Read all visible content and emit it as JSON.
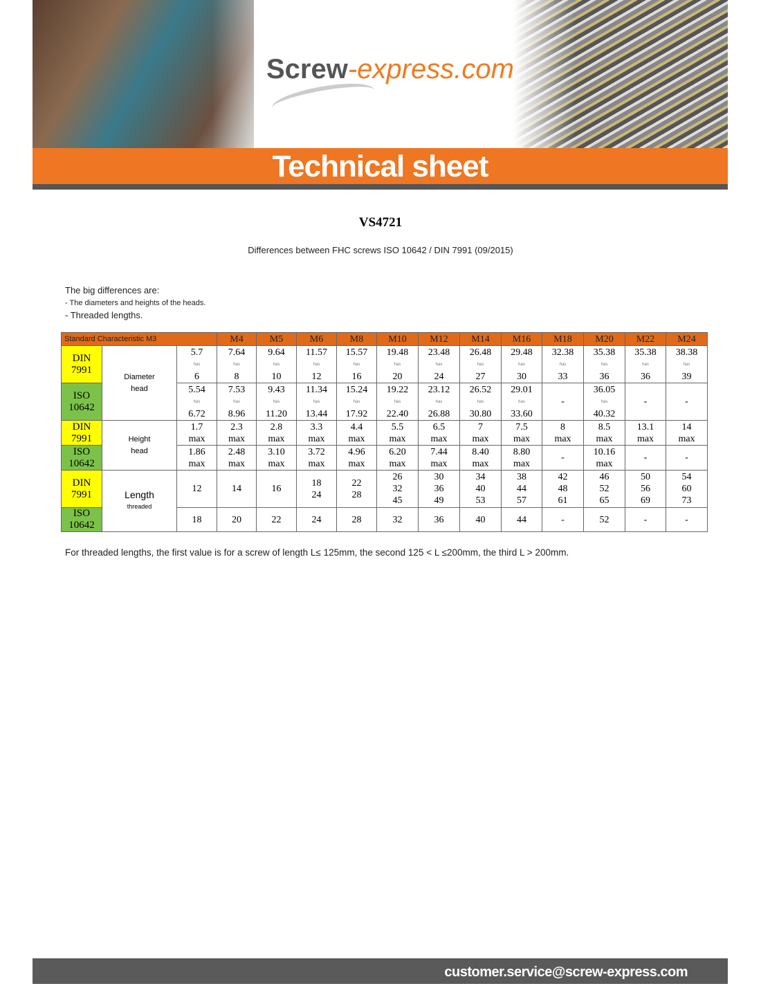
{
  "header": {
    "logo_main": "Screw",
    "logo_accent": "-express.com",
    "banner_title": "Technical sheet"
  },
  "reference": "VS4721",
  "subtitle": "Differences between FHC screws ISO 10642 / DIN 7991 (09/2015)",
  "differences": {
    "intro": "The big differences are:",
    "items": [
      "- The diameters and heights of the heads.",
      "- Threaded lengths."
    ]
  },
  "table": {
    "header_label": "Standard Characteristic M3",
    "sizes": [
      "M4",
      "M5",
      "M6",
      "M8",
      "M10",
      "M12",
      "M14",
      "M16",
      "M18",
      "M20",
      "M22",
      "M24"
    ],
    "std_din": [
      "DIN",
      "7991"
    ],
    "std_iso": [
      "ISO",
      "10642"
    ],
    "has_label": "has",
    "max_label": "max",
    "chars": {
      "diameter": [
        "Diameter",
        "head"
      ],
      "height": [
        "Height",
        "head"
      ],
      "length": [
        "Length",
        "threaded"
      ]
    },
    "diameter_din": [
      [
        "5.7",
        "6"
      ],
      [
        "7.64",
        "8"
      ],
      [
        "9.64",
        "10"
      ],
      [
        "11.57",
        "12"
      ],
      [
        "15.57",
        "16"
      ],
      [
        "19.48",
        "20"
      ],
      [
        "23.48",
        "24"
      ],
      [
        "26.48",
        "27"
      ],
      [
        "29.48",
        "30"
      ],
      [
        "32.38",
        "33"
      ],
      [
        "35.38",
        "36"
      ],
      [
        "35.38",
        "36"
      ],
      [
        "38.38",
        "39"
      ]
    ],
    "diameter_iso": [
      [
        "5.54",
        "6.72"
      ],
      [
        "7.53",
        "8.96"
      ],
      [
        "9.43",
        "11.20"
      ],
      [
        "11.34",
        "13.44"
      ],
      [
        "15.24",
        "17.92"
      ],
      [
        "19.22",
        "22.40"
      ],
      [
        "23.12",
        "26.88"
      ],
      [
        "26.52",
        "30.80"
      ],
      [
        "29.01",
        "33.60"
      ],
      "-",
      [
        "36.05",
        "40.32"
      ],
      "-",
      "-"
    ],
    "height_din": [
      "1.7",
      "2.3",
      "2.8",
      "3.3",
      "4.4",
      "5.5",
      "6.5",
      "7",
      "7.5",
      "8",
      "8.5",
      "13.1",
      "14"
    ],
    "height_iso": [
      "1.86",
      "2.48",
      "3.10",
      "3.72",
      "4.96",
      "6.20",
      "7.44",
      "8.40",
      "8.80",
      "-",
      "10.16",
      "-",
      "-"
    ],
    "length_din": [
      [
        "12"
      ],
      [
        "14"
      ],
      [
        "16"
      ],
      [
        "18",
        "24"
      ],
      [
        "22",
        "28"
      ],
      [
        "26",
        "32",
        "45"
      ],
      [
        "30",
        "36",
        "49"
      ],
      [
        "34",
        "40",
        "53"
      ],
      [
        "38",
        "44",
        "57"
      ],
      [
        "42",
        "48",
        "61"
      ],
      [
        "46",
        "52",
        "65"
      ],
      [
        "50",
        "56",
        "69"
      ],
      [
        "54",
        "60",
        "73"
      ]
    ],
    "length_iso": [
      "18",
      "20",
      "22",
      "24",
      "28",
      "32",
      "36",
      "40",
      "44",
      "-",
      "52",
      "-",
      "-"
    ]
  },
  "note": "For threaded lengths, the first value is for a screw of length L≤ 125mm, the second 125 < L ≤200mm, the third L > 200mm.",
  "footer_email": "customer.service@screw-express.com",
  "colors": {
    "orange": "#ef7622",
    "din": "#ffff00",
    "iso": "#7cc24a",
    "footer": "#5a5a5a"
  }
}
